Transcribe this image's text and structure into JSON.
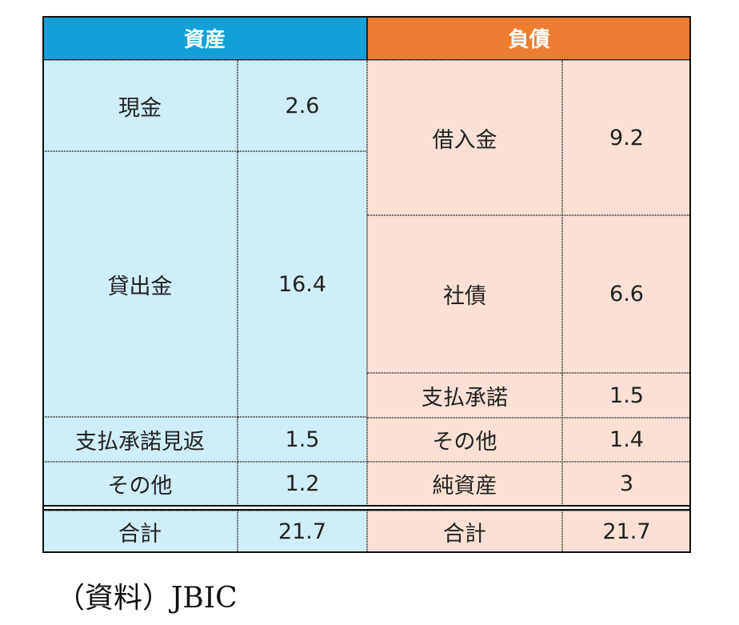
{
  "header": {
    "assets": "資産",
    "liabilities": "負債"
  },
  "assets": {
    "rows": [
      [
        "現金",
        2.6
      ],
      [
        "貸出金",
        16.4
      ],
      [
        "支払承諾見返",
        1.5
      ],
      [
        "その他",
        1.2
      ]
    ],
    "total": [
      "合計",
      21.7
    ]
  },
  "liabilities": {
    "rows": [
      [
        "借入金",
        9.2
      ],
      [
        "社債",
        6.6
      ],
      [
        "支払承諾",
        1.5
      ],
      [
        "その他",
        1.4
      ],
      [
        "純資産",
        3
      ]
    ],
    "total": [
      "合計",
      21.7
    ]
  },
  "source": "（資料）JBIC"
}
